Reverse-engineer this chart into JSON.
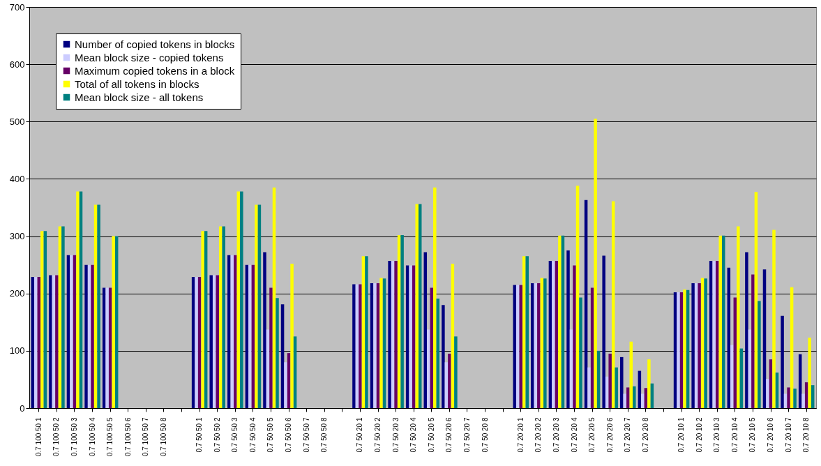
{
  "chart_data": {
    "type": "bar",
    "categories": [
      "0.7 100 50 1",
      "0.7 100 50 2",
      "0.7 100 50 3",
      "0.7 100 50 4",
      "0.7 100 50 5",
      "0.7 100 50 6",
      "0.7 100 50 7",
      "0.7 100 50 8",
      null,
      "0.7 50 50 1",
      "0.7 50 50 2",
      "0.7 50 50 3",
      "0.7 50 50 4",
      "0.7 50 50 5",
      "0.7 50 50 6",
      "0.7 50 50 7",
      "0.7 50 50 8",
      null,
      "0.7 50 20 1",
      "0.7 50 20 2",
      "0.7 50 20 3",
      "0.7 50 20 4",
      "0.7 50 20 5",
      "0.7 50 20 6",
      "0.7 50 20 7",
      "0.7 50 20 8",
      null,
      "0.7 20 20 1",
      "0.7 20 20 2",
      "0.7 20 20 3",
      "0.7 20 20 4",
      "0.7 20 20 5",
      "0.7 20 20 6",
      "0.7 20 20 7",
      "0.7 20 20 8",
      null,
      "0.7 20 10 1",
      "0.7 20 10 2",
      "0.7 20 10 3",
      "0.7 20 10 4",
      "0.7 20 10 5",
      "0.7 20 10 6",
      "0.7 20 10 7",
      "0.7 20 10 8"
    ],
    "series": [
      {
        "name": "Number of copied tokens in blocks",
        "color": "#000080",
        "values": [
          229,
          232,
          267,
          250,
          210,
          null,
          null,
          null,
          null,
          229,
          232,
          267,
          250,
          272,
          181,
          null,
          null,
          null,
          216,
          218,
          257,
          249,
          272,
          180,
          null,
          null,
          null,
          215,
          218,
          257,
          275,
          363,
          266,
          89,
          65,
          null,
          202,
          218,
          257,
          245,
          272,
          242,
          161,
          94
        ]
      },
      {
        "name": "Mean block size - copied tokens",
        "color": "#ccccff",
        "values": [
          229,
          232,
          267,
          250,
          210,
          null,
          null,
          null,
          null,
          229,
          232,
          267,
          250,
          137,
          80,
          null,
          null,
          null,
          216,
          218,
          257,
          249,
          137,
          80,
          null,
          null,
          null,
          215,
          218,
          257,
          137,
          71,
          55,
          25,
          25,
          null,
          202,
          218,
          257,
          110,
          137,
          51,
          25,
          25
        ]
      },
      {
        "name": "Maximum copied tokens in a block",
        "color": "#660066",
        "values": [
          229,
          232,
          267,
          250,
          210,
          null,
          null,
          null,
          null,
          229,
          232,
          267,
          250,
          210,
          96,
          null,
          null,
          null,
          216,
          218,
          257,
          249,
          210,
          95,
          null,
          null,
          null,
          215,
          218,
          257,
          249,
          210,
          95,
          36,
          35,
          null,
          202,
          218,
          257,
          193,
          233,
          85,
          36,
          45
        ]
      },
      {
        "name": "Total of all tokens in blocks",
        "color": "#ffff00",
        "values": [
          309,
          317,
          378,
          355,
          300,
          null,
          null,
          null,
          null,
          309,
          317,
          378,
          355,
          385,
          252,
          null,
          null,
          null,
          265,
          227,
          302,
          356,
          385,
          252,
          null,
          null,
          null,
          265,
          227,
          301,
          388,
          505,
          361,
          116,
          85,
          null,
          207,
          227,
          301,
          317,
          377,
          311,
          211,
          123
        ]
      },
      {
        "name": "Mean block size - all tokens",
        "color": "#008080",
        "values": [
          309,
          317,
          378,
          355,
          300,
          null,
          null,
          null,
          null,
          309,
          317,
          378,
          355,
          192,
          125,
          null,
          null,
          null,
          265,
          226,
          302,
          356,
          191,
          125,
          null,
          null,
          null,
          265,
          226,
          301,
          193,
          100,
          71,
          38,
          43,
          null,
          206,
          226,
          301,
          104,
          187,
          62,
          34,
          40
        ]
      }
    ],
    "ylim": [
      0,
      700
    ],
    "yticks": [
      0,
      100,
      200,
      300,
      400,
      500,
      600,
      700
    ],
    "grid": "y",
    "legend": "top left"
  }
}
